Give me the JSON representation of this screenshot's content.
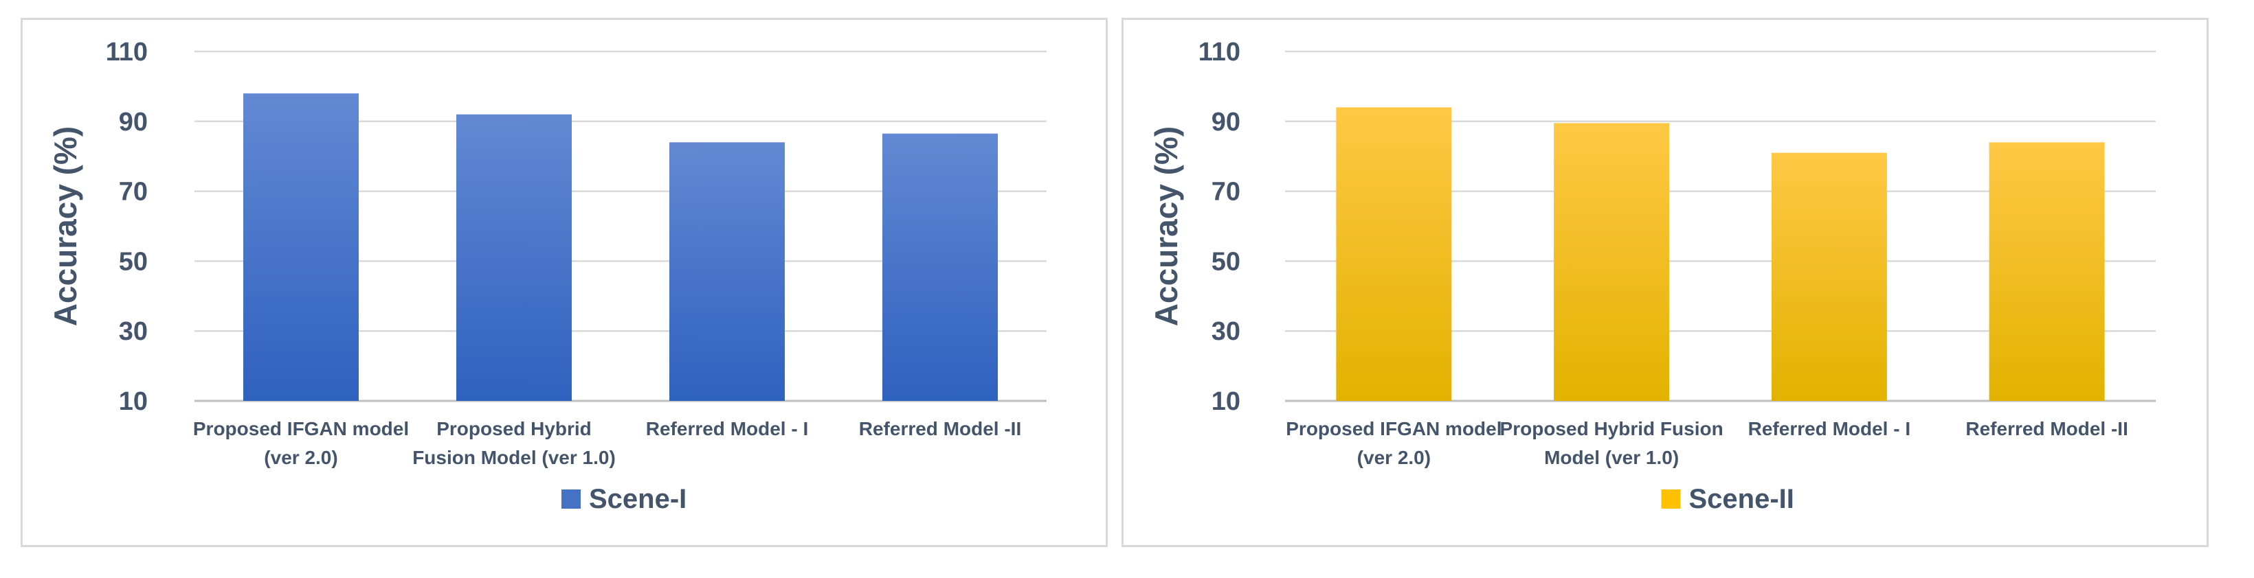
{
  "chart_data": [
    {
      "type": "bar",
      "categories": [
        [
          "Proposed IFGAN model",
          "(ver 2.0)"
        ],
        [
          "Proposed Hybrid",
          "Fusion Model (ver 1.0)"
        ],
        [
          "Referred Model - I"
        ],
        [
          "Referred Model -II"
        ]
      ],
      "series": [
        {
          "name": "Scene-I",
          "values": [
            98,
            92,
            84,
            86.5
          ]
        }
      ],
      "ylabel": "Accuracy (%)",
      "ylim": [
        10,
        110
      ],
      "yticks": [
        "10",
        "30",
        "50",
        "70",
        "90",
        "110"
      ],
      "grid": true,
      "legend": "bottom-center",
      "colors": {
        "top": "#6289d3",
        "bottom": "#2f61bf",
        "legend": "#4472c4"
      }
    },
    {
      "type": "bar",
      "categories": [
        [
          "Proposed IFGAN model",
          "(ver 2.0)"
        ],
        [
          "Proposed Hybrid Fusion",
          "Model (ver 1.0)"
        ],
        [
          "Referred Model - I"
        ],
        [
          "Referred Model -II"
        ]
      ],
      "series": [
        {
          "name": "Scene-II",
          "values": [
            94,
            89.5,
            81,
            84
          ]
        }
      ],
      "ylabel": "Accuracy (%)",
      "ylim": [
        10,
        110
      ],
      "yticks": [
        "10",
        "30",
        "50",
        "70",
        "90",
        "110"
      ],
      "grid": true,
      "legend": "bottom-center",
      "colors": {
        "top": "#ffc845",
        "bottom": "#e3b200",
        "legend": "#ffc000"
      }
    }
  ]
}
